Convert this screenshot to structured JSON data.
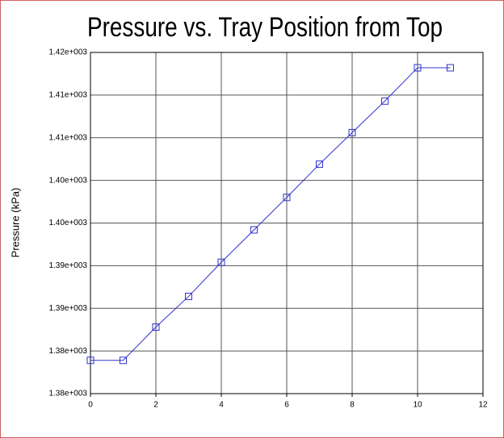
{
  "chart_data": {
    "type": "line",
    "title": "Pressure vs. Tray Position from Top",
    "y_label": "Pressure (kPa)",
    "x": [
      0,
      1,
      2,
      3,
      4,
      5,
      6,
      7,
      8,
      9,
      10,
      11
    ],
    "series": [
      {
        "name": "Pressure",
        "color": "#3333cc",
        "values": [
          1381.9,
          1381.9,
          1385.8,
          1389.4,
          1393.4,
          1397.2,
          1401.0,
          1404.9,
          1408.6,
          1412.3,
          1416.2,
          1416.2
        ]
      }
    ],
    "xlim": [
      0,
      12
    ],
    "xticks": [
      0,
      2,
      4,
      6,
      8,
      10,
      12
    ],
    "ylim": [
      1378,
      1418
    ],
    "yticks": [
      {
        "value": 1378,
        "label": "1.38e+003"
      },
      {
        "value": 1383,
        "label": "1.38e+003"
      },
      {
        "value": 1388,
        "label": "1.39e+003"
      },
      {
        "value": 1393,
        "label": "1.39e+003"
      },
      {
        "value": 1398,
        "label": "1.40e+003"
      },
      {
        "value": 1403,
        "label": "1.40e+003"
      },
      {
        "value": 1408,
        "label": "1.41e+003"
      },
      {
        "value": 1413,
        "label": "1.41e+003"
      },
      {
        "value": 1418,
        "label": "1.42e+003"
      }
    ],
    "grid": true
  }
}
